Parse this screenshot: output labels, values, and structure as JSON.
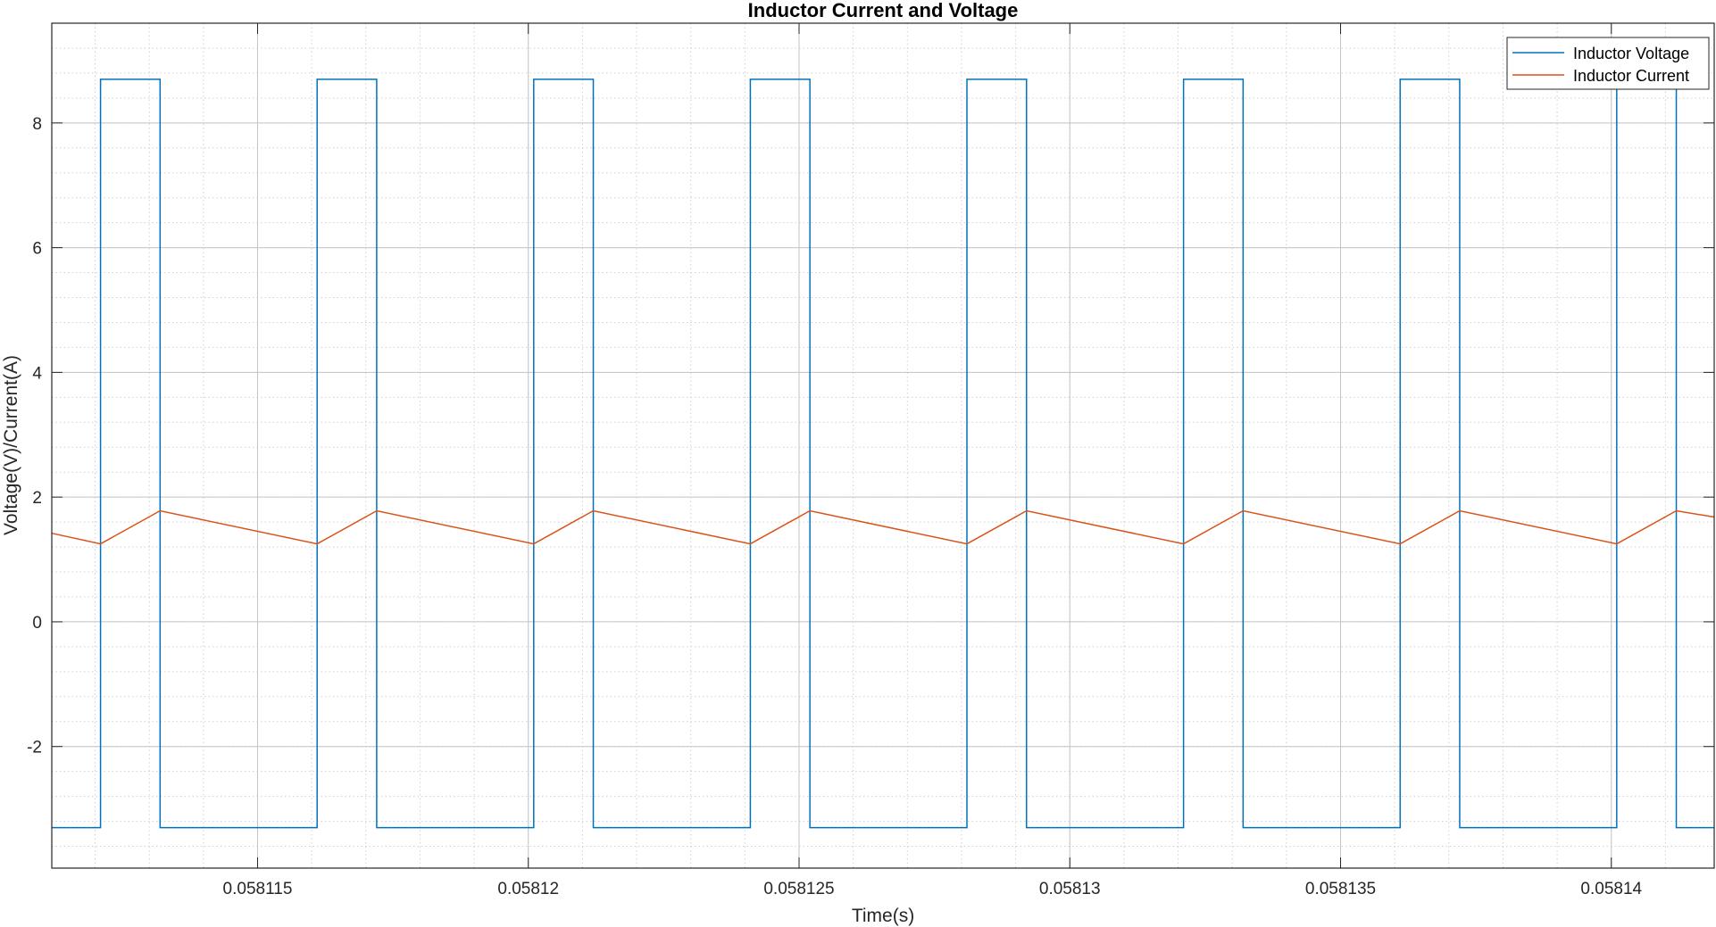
{
  "chart_data": {
    "type": "line",
    "title": "Inductor Current and Voltage",
    "xlabel": "Time(s)",
    "ylabel": "Voltage(V)/Current(A)",
    "xlim": [
      0.0581112,
      0.0581419
    ],
    "ylim": [
      -3.95,
      9.6
    ],
    "xticks": [
      0.058115,
      0.05812,
      0.058125,
      0.05813,
      0.058135,
      0.05814
    ],
    "xtick_labels": [
      "0.058115",
      "0.05812",
      "0.058125",
      "0.05813",
      "0.058135",
      "0.05814"
    ],
    "yticks": [
      -2,
      0,
      2,
      4,
      6,
      8
    ],
    "ytick_labels": [
      "-2",
      "0",
      "2",
      "4",
      "6",
      "8"
    ],
    "grid": true,
    "minor_grid": true,
    "legend_position": "top-right",
    "series": [
      {
        "name": "Inductor Voltage",
        "color": "#0072BD",
        "x": [
          0.0581112,
          0.0581121,
          0.0581121,
          0.0581132,
          0.0581132,
          0.0581161,
          0.0581161,
          0.0581172,
          0.0581172,
          0.0581201,
          0.0581201,
          0.0581212,
          0.0581212,
          0.0581241,
          0.0581241,
          0.0581252,
          0.0581252,
          0.0581281,
          0.0581281,
          0.0581292,
          0.0581292,
          0.0581321,
          0.0581321,
          0.0581332,
          0.0581332,
          0.0581361,
          0.0581361,
          0.0581372,
          0.0581372,
          0.0581401,
          0.0581401,
          0.0581412,
          0.0581412,
          0.0581419
        ],
        "y": [
          -3.3,
          -3.3,
          8.7,
          8.7,
          -3.3,
          -3.3,
          8.7,
          8.7,
          -3.3,
          -3.3,
          8.7,
          8.7,
          -3.3,
          -3.3,
          8.7,
          8.7,
          -3.3,
          -3.3,
          8.7,
          8.7,
          -3.3,
          -3.3,
          8.7,
          8.7,
          -3.3,
          -3.3,
          8.7,
          8.7,
          -3.3,
          -3.3,
          8.7,
          8.7,
          -3.3,
          -3.3
        ]
      },
      {
        "name": "Inductor Current",
        "color": "#D95319",
        "x": [
          0.0581112,
          0.0581121,
          0.0581132,
          0.0581161,
          0.0581172,
          0.0581201,
          0.0581212,
          0.0581241,
          0.0581252,
          0.0581281,
          0.0581292,
          0.0581321,
          0.0581332,
          0.0581361,
          0.0581372,
          0.0581401,
          0.0581412,
          0.0581419
        ],
        "y": [
          1.42,
          1.25,
          1.78,
          1.25,
          1.78,
          1.25,
          1.78,
          1.25,
          1.78,
          1.25,
          1.78,
          1.25,
          1.78,
          1.25,
          1.78,
          1.25,
          1.78,
          1.68
        ]
      }
    ]
  }
}
